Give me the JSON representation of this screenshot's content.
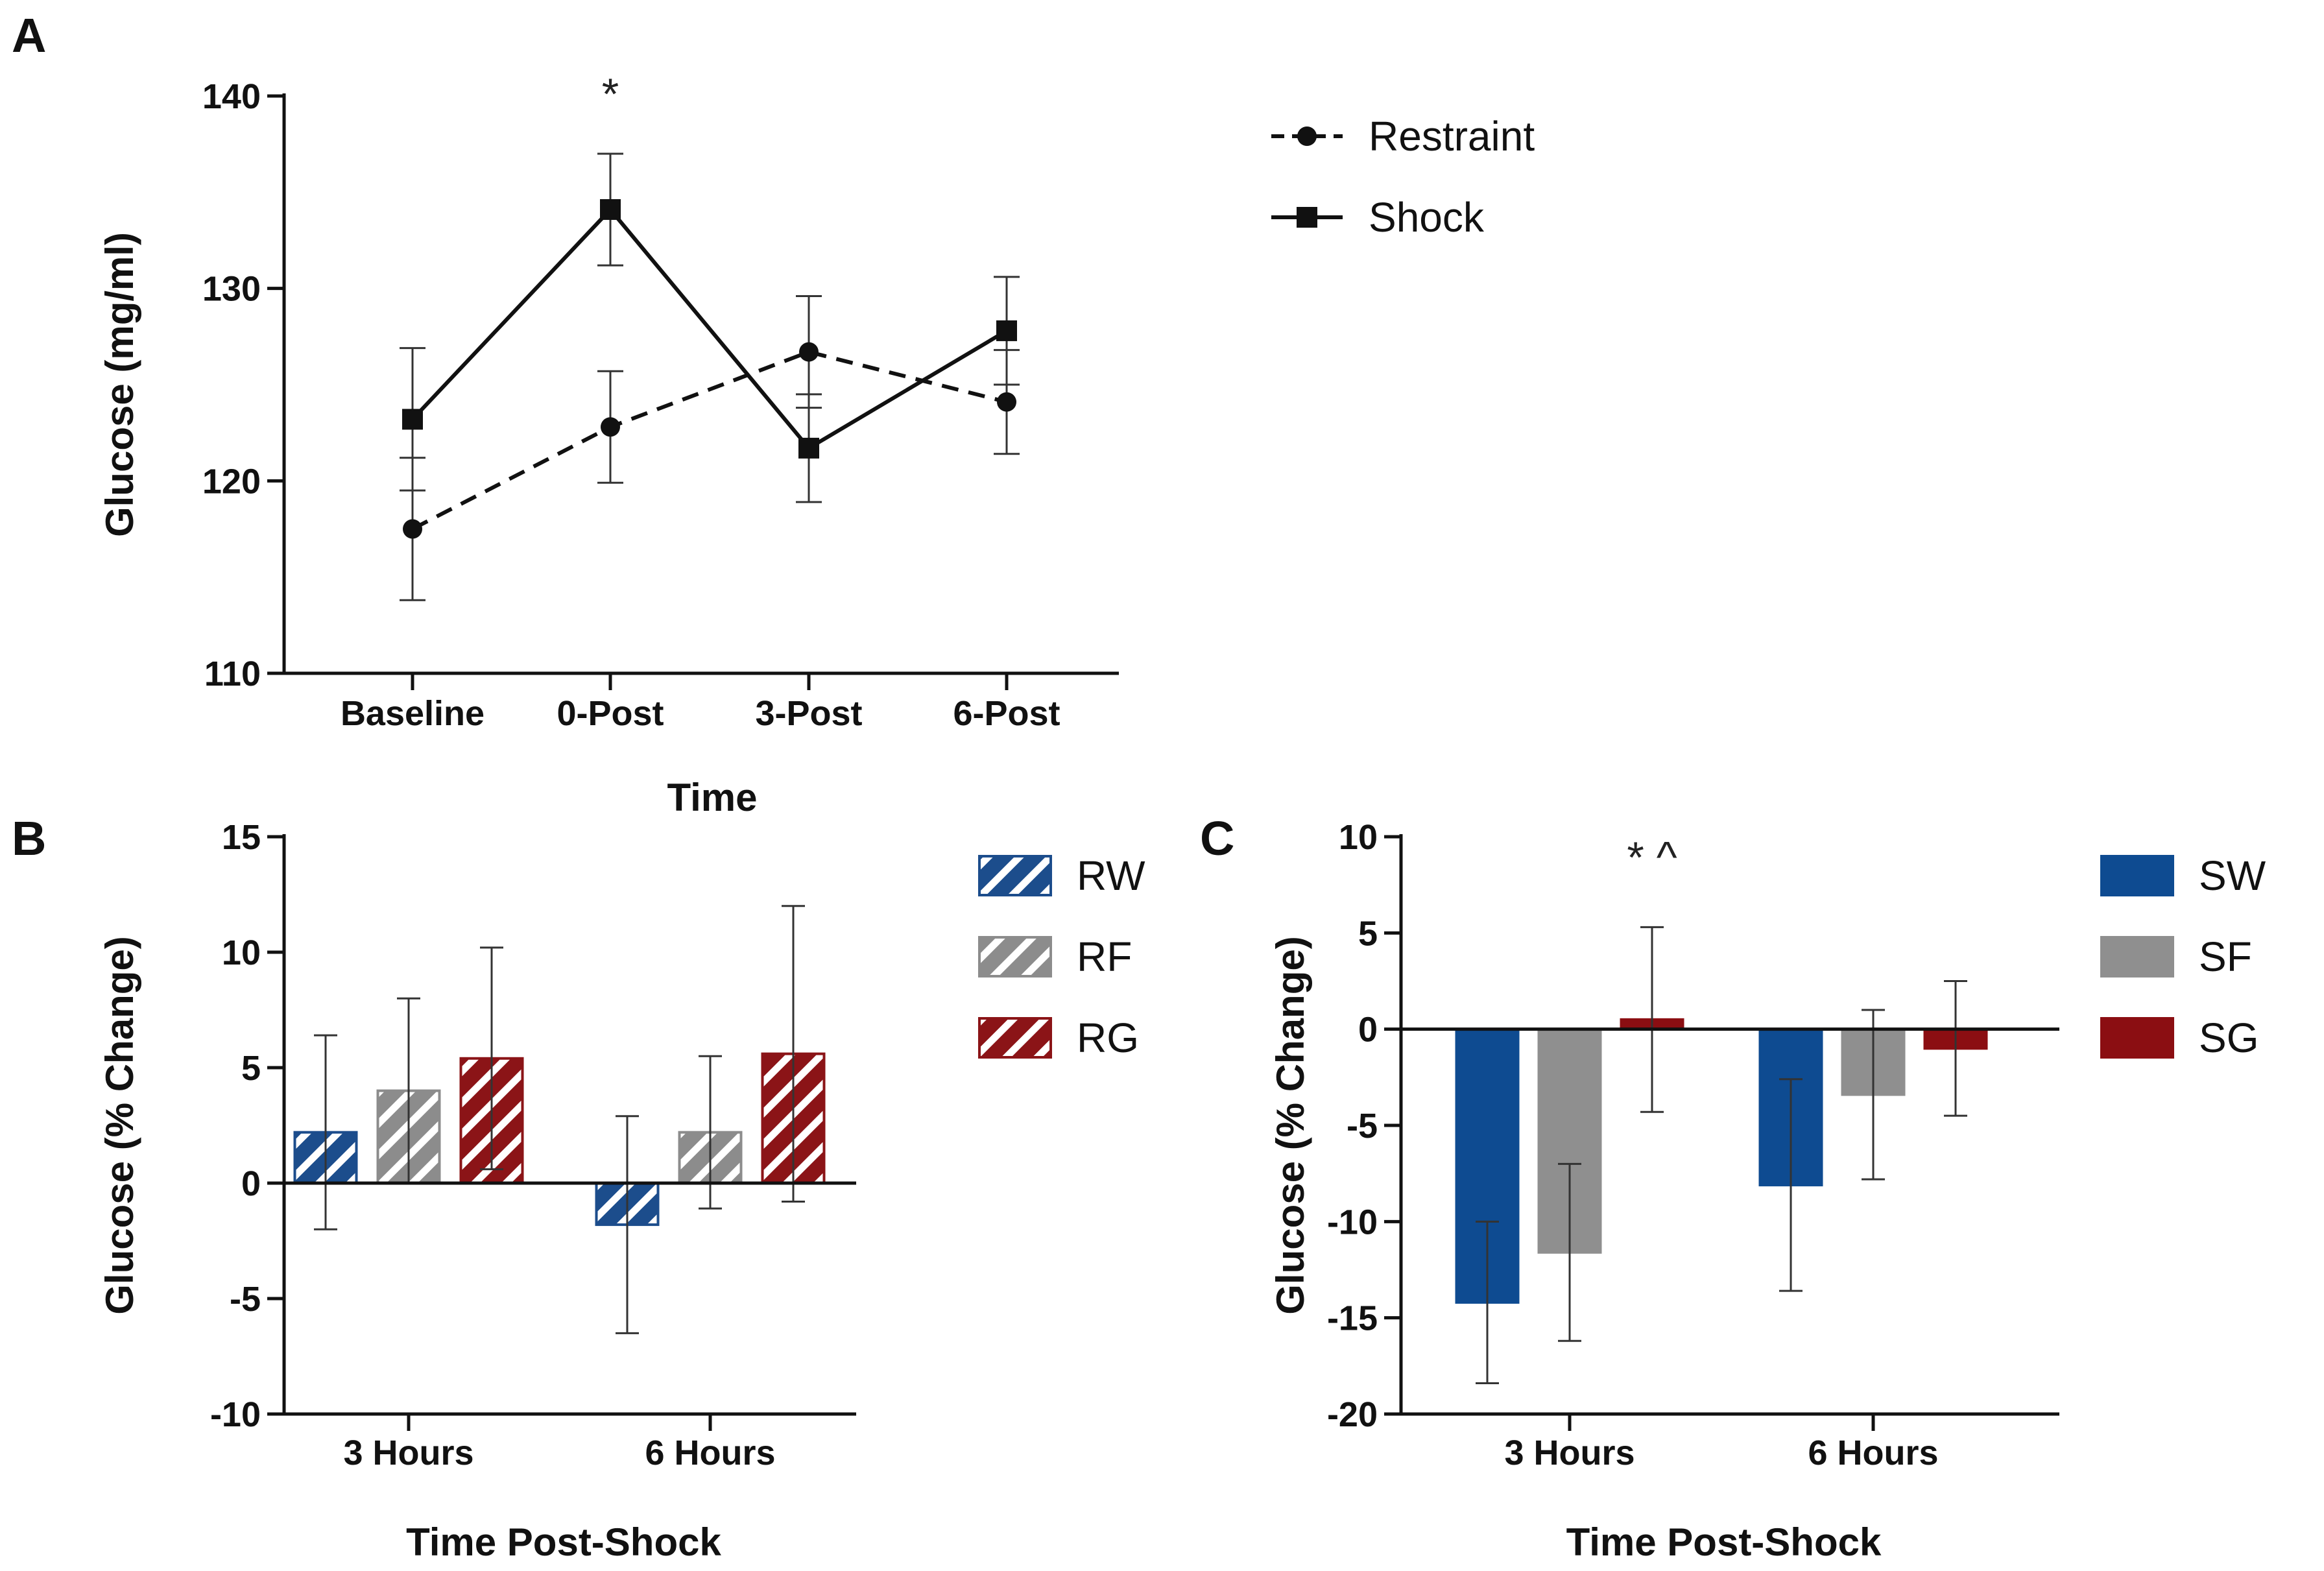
{
  "chart_data": [
    {
      "panel": "A",
      "type": "line",
      "title": "",
      "xlabel": "Time",
      "ylabel": "Glucose (mg/ml)",
      "categories": [
        "Baseline",
        "0-Post",
        "3-Post",
        "6-Post"
      ],
      "ylim": [
        110,
        140
      ],
      "yticks": [
        "110",
        "120",
        "130",
        "140"
      ],
      "legend_position": "top-right",
      "series": [
        {
          "name": "Restraint",
          "marker": "circle",
          "line": "dashed",
          "values": [
            117.5,
            122.8,
            126.7,
            124.1
          ],
          "errors": [
            3.7,
            2.9,
            2.9,
            2.7
          ]
        },
        {
          "name": "Shock",
          "marker": "square",
          "line": "solid",
          "values": [
            123.2,
            134.1,
            121.7,
            127.8
          ],
          "errors": [
            3.7,
            2.9,
            2.8,
            2.8
          ]
        }
      ],
      "annotations": [
        {
          "category": "0-Post",
          "text": "*"
        }
      ]
    },
    {
      "panel": "B",
      "type": "bar",
      "title": "",
      "xlabel": "Time Post-Shock",
      "ylabel": "Glucose (% Change)",
      "categories": [
        "3 Hours",
        "6 Hours"
      ],
      "ylim": [
        -10,
        15
      ],
      "yticks": [
        "-10",
        "-5",
        "0",
        "5",
        "10",
        "15"
      ],
      "legend_position": "top-right",
      "series": [
        {
          "name": "RW",
          "color": "#1c4d8c",
          "pattern": "striped",
          "values": [
            2.2,
            -1.8
          ],
          "errors": [
            4.2,
            4.7
          ]
        },
        {
          "name": "RF",
          "color": "#8c8c8c",
          "pattern": "striped",
          "values": [
            4.0,
            2.2
          ],
          "errors": [
            4.0,
            3.3
          ]
        },
        {
          "name": "RG",
          "color": "#8b1417",
          "pattern": "striped",
          "values": [
            5.4,
            5.6
          ],
          "errors": [
            4.8,
            6.4
          ]
        }
      ],
      "annotations": []
    },
    {
      "panel": "C",
      "type": "bar",
      "title": "",
      "xlabel": "Time Post-Shock",
      "ylabel": "Glucose (% Change)",
      "categories": [
        "3 Hours",
        "6 Hours"
      ],
      "ylim": [
        -20,
        10
      ],
      "yticks": [
        "-20",
        "-15",
        "-10",
        "-5",
        "0",
        "5",
        "10"
      ],
      "legend_position": "top-right",
      "series": [
        {
          "name": "SW",
          "color": "#0e4b91",
          "pattern": "solid",
          "values": [
            -14.2,
            -8.1
          ],
          "errors": [
            4.2,
            5.5
          ]
        },
        {
          "name": "SF",
          "color": "#8f8f8f",
          "pattern": "solid",
          "values": [
            -11.6,
            -3.4
          ],
          "errors": [
            4.6,
            4.4
          ]
        },
        {
          "name": "SG",
          "color": "#8b0e12",
          "pattern": "solid",
          "values": [
            0.5,
            -1.0
          ],
          "errors": [
            4.8,
            3.5
          ]
        }
      ],
      "annotations": [
        {
          "category": "3 Hours",
          "text": "* ^"
        }
      ]
    }
  ]
}
